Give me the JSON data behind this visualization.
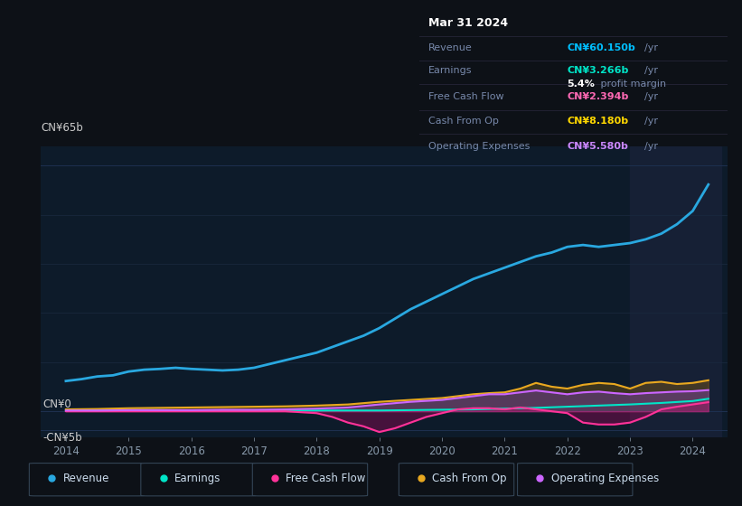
{
  "background_color": "#0d1117",
  "plot_bg_color": "#0d1b2a",
  "title_box": {
    "date": "Mar 31 2024",
    "rows": [
      {
        "label": "Revenue",
        "value": "CN¥60.150b",
        "unit": "/yr",
        "value_color": "#00bfff"
      },
      {
        "label": "Earnings",
        "value": "CN¥3.266b",
        "unit": "/yr",
        "value_color": "#00e5c8"
      },
      {
        "label": "",
        "value": "5.4%",
        "unit": " profit margin",
        "value_color": "#ffffff"
      },
      {
        "label": "Free Cash Flow",
        "value": "CN¥2.394b",
        "unit": "/yr",
        "value_color": "#ff69b4"
      },
      {
        "label": "Cash From Op",
        "value": "CN¥8.180b",
        "unit": "/yr",
        "value_color": "#ffd700"
      },
      {
        "label": "Operating Expenses",
        "value": "CN¥5.580b",
        "unit": "/yr",
        "value_color": "#cc88ff"
      }
    ]
  },
  "ylabel_top": "CN¥65b",
  "ylabel_mid": "CN¥0",
  "ylabel_bot": "-CN¥5b",
  "ylim": [
    -7,
    70
  ],
  "xlim": [
    2013.6,
    2024.55
  ],
  "ytick_positions": [
    65,
    0,
    -5
  ],
  "xtick_labels": [
    "2014",
    "2015",
    "2016",
    "2017",
    "2018",
    "2019",
    "2020",
    "2021",
    "2022",
    "2023",
    "2024"
  ],
  "xtick_vals": [
    2014,
    2015,
    2016,
    2017,
    2018,
    2019,
    2020,
    2021,
    2022,
    2023,
    2024
  ],
  "series": {
    "Revenue": {
      "color": "#29a8e0",
      "x": [
        2014.0,
        2014.25,
        2014.5,
        2014.75,
        2015.0,
        2015.25,
        2015.5,
        2015.75,
        2016.0,
        2016.25,
        2016.5,
        2016.75,
        2017.0,
        2017.25,
        2017.5,
        2017.75,
        2018.0,
        2018.25,
        2018.5,
        2018.75,
        2019.0,
        2019.25,
        2019.5,
        2019.75,
        2020.0,
        2020.25,
        2020.5,
        2020.75,
        2021.0,
        2021.25,
        2021.5,
        2021.75,
        2022.0,
        2022.25,
        2022.5,
        2022.75,
        2023.0,
        2023.25,
        2023.5,
        2023.75,
        2024.0,
        2024.25
      ],
      "y": [
        8.0,
        8.5,
        9.2,
        9.5,
        10.5,
        11.0,
        11.2,
        11.5,
        11.2,
        11.0,
        10.8,
        11.0,
        11.5,
        12.5,
        13.5,
        14.5,
        15.5,
        17.0,
        18.5,
        20.0,
        22.0,
        24.5,
        27.0,
        29.0,
        31.0,
        33.0,
        35.0,
        36.5,
        38.0,
        39.5,
        41.0,
        42.0,
        43.5,
        44.0,
        43.5,
        44.0,
        44.5,
        45.5,
        47.0,
        49.5,
        53.0,
        60.0
      ]
    },
    "Earnings": {
      "color": "#00e5c8",
      "x": [
        2014.0,
        2014.5,
        2015.0,
        2015.5,
        2016.0,
        2016.5,
        2017.0,
        2017.5,
        2018.0,
        2018.5,
        2019.0,
        2019.5,
        2020.0,
        2020.5,
        2021.0,
        2021.5,
        2022.0,
        2022.5,
        2023.0,
        2023.5,
        2024.0,
        2024.25
      ],
      "y": [
        0.2,
        0.2,
        0.3,
        0.3,
        0.2,
        0.2,
        0.2,
        0.2,
        0.2,
        0.2,
        0.2,
        0.3,
        0.4,
        0.5,
        0.7,
        0.9,
        1.2,
        1.5,
        1.8,
        2.2,
        2.7,
        3.3
      ]
    },
    "FreeCashFlow": {
      "color": "#ff3399",
      "x": [
        2014.0,
        2014.5,
        2015.0,
        2015.5,
        2016.0,
        2016.5,
        2017.0,
        2017.5,
        2018.0,
        2018.25,
        2018.5,
        2018.75,
        2019.0,
        2019.25,
        2019.5,
        2019.75,
        2020.0,
        2020.25,
        2020.5,
        2020.75,
        2021.0,
        2021.25,
        2021.5,
        2021.75,
        2022.0,
        2022.25,
        2022.5,
        2022.75,
        2023.0,
        2023.25,
        2023.5,
        2023.75,
        2024.0,
        2024.25
      ],
      "y": [
        0.0,
        0.0,
        0.0,
        0.0,
        0.0,
        0.0,
        0.0,
        0.0,
        -0.5,
        -1.5,
        -3.0,
        -4.0,
        -5.5,
        -4.5,
        -3.0,
        -1.5,
        -0.5,
        0.5,
        0.8,
        0.8,
        0.5,
        1.0,
        0.5,
        0.0,
        -0.5,
        -3.0,
        -3.5,
        -3.5,
        -3.0,
        -1.5,
        0.5,
        1.2,
        1.8,
        2.4
      ]
    },
    "CashFromOp": {
      "color": "#e8a820",
      "x": [
        2014.0,
        2014.5,
        2015.0,
        2015.5,
        2016.0,
        2016.5,
        2017.0,
        2017.5,
        2018.0,
        2018.5,
        2019.0,
        2019.5,
        2020.0,
        2020.25,
        2020.5,
        2020.75,
        2021.0,
        2021.25,
        2021.5,
        2021.75,
        2022.0,
        2022.25,
        2022.5,
        2022.75,
        2023.0,
        2023.25,
        2023.5,
        2023.75,
        2024.0,
        2024.25
      ],
      "y": [
        0.5,
        0.6,
        0.8,
        0.9,
        1.0,
        1.1,
        1.2,
        1.3,
        1.5,
        1.8,
        2.5,
        3.0,
        3.5,
        4.0,
        4.5,
        4.8,
        5.0,
        6.0,
        7.5,
        6.5,
        6.0,
        7.0,
        7.5,
        7.2,
        6.0,
        7.5,
        7.8,
        7.2,
        7.5,
        8.2
      ]
    },
    "OperatingExpenses": {
      "color": "#cc66ff",
      "x": [
        2014.0,
        2014.5,
        2015.0,
        2015.5,
        2016.0,
        2016.5,
        2017.0,
        2017.5,
        2018.0,
        2018.5,
        2019.0,
        2019.5,
        2020.0,
        2020.25,
        2020.5,
        2020.75,
        2021.0,
        2021.25,
        2021.5,
        2021.75,
        2022.0,
        2022.25,
        2022.5,
        2022.75,
        2023.0,
        2023.25,
        2023.5,
        2023.75,
        2024.0,
        2024.25
      ],
      "y": [
        0.2,
        0.2,
        0.3,
        0.3,
        0.3,
        0.4,
        0.4,
        0.5,
        0.7,
        1.0,
        1.8,
        2.5,
        3.0,
        3.5,
        4.0,
        4.5,
        4.5,
        5.0,
        5.5,
        5.0,
        4.5,
        5.0,
        5.2,
        4.8,
        4.5,
        4.8,
        5.0,
        5.2,
        5.3,
        5.6
      ]
    }
  },
  "legend": [
    {
      "label": "Revenue",
      "color": "#29a8e0"
    },
    {
      "label": "Earnings",
      "color": "#00e5c8"
    },
    {
      "label": "Free Cash Flow",
      "color": "#ff3399"
    },
    {
      "label": "Cash From Op",
      "color": "#e8a820"
    },
    {
      "label": "Operating Expenses",
      "color": "#cc66ff"
    }
  ],
  "highlight_x_start": 2023.0,
  "highlight_x_end": 2024.45,
  "highlight_color": "#162035"
}
